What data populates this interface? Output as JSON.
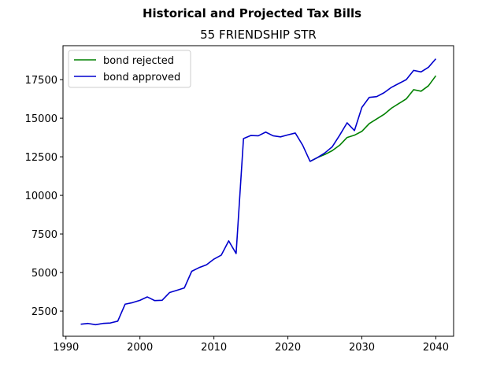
{
  "chart_data": {
    "type": "line",
    "suptitle": "Historical and Projected Tax Bills",
    "title": "55 FRIENDSHIP STR",
    "xlabel": "",
    "ylabel": "",
    "xlim": [
      1989.6,
      2042.4
    ],
    "ylim": [
      870,
      19700
    ],
    "xticks": [
      1990,
      2000,
      2010,
      2020,
      2030,
      2040
    ],
    "yticks": [
      2500,
      5000,
      7500,
      10000,
      12500,
      15000,
      17500
    ],
    "grid": false,
    "legend": "upper-left",
    "series": [
      {
        "name": "bond rejected",
        "color": "#008000",
        "x": [
          2023,
          2024,
          2025,
          2026,
          2027,
          2028,
          2029,
          2030,
          2031,
          2032,
          2033,
          2034,
          2035,
          2036,
          2037,
          2038,
          2039,
          2040
        ],
        "y": [
          12200,
          12450,
          12650,
          12900,
          13250,
          13750,
          13900,
          14150,
          14650,
          14950,
          15250,
          15650,
          15950,
          16250,
          16850,
          16750,
          17100,
          17750
        ]
      },
      {
        "name": "bond approved",
        "color": "#0000cd",
        "x": [
          1992,
          1993,
          1994,
          1995,
          1996,
          1997,
          1998,
          1999,
          2000,
          2001,
          2002,
          2003,
          2004,
          2005,
          2006,
          2007,
          2008,
          2009,
          2010,
          2011,
          2012,
          2013,
          2014,
          2015,
          2016,
          2017,
          2018,
          2019,
          2020,
          2021,
          2022,
          2023,
          2024,
          2025,
          2026,
          2027,
          2028,
          2029,
          2030,
          2031,
          2032,
          2033,
          2034,
          2035,
          2036,
          2037,
          2038,
          2039,
          2040
        ],
        "y": [
          1650,
          1700,
          1620,
          1700,
          1730,
          1850,
          2950,
          3050,
          3200,
          3420,
          3180,
          3200,
          3700,
          3850,
          4000,
          5080,
          5320,
          5500,
          5870,
          6130,
          7050,
          6230,
          13680,
          13880,
          13860,
          14100,
          13860,
          13790,
          13920,
          14040,
          13250,
          12200,
          12450,
          12750,
          13150,
          13900,
          14700,
          14200,
          15700,
          16350,
          16400,
          16650,
          17000,
          17250,
          17500,
          18100,
          18000,
          18300,
          18850
        ]
      }
    ]
  }
}
